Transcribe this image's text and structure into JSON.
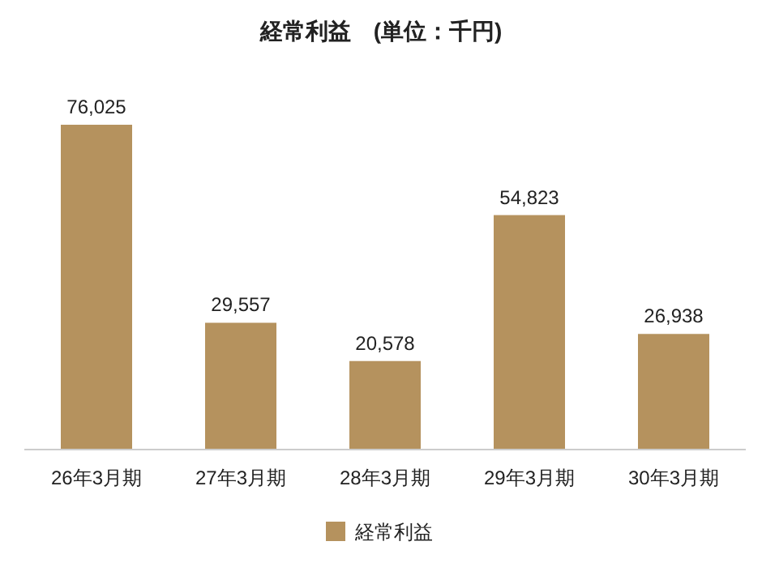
{
  "chart_data": {
    "type": "bar",
    "title": "経常利益　(単位：千円)",
    "categories": [
      "26年3月期",
      "27年3月期",
      "28年3月期",
      "29年3月期",
      "30年3月期"
    ],
    "series": [
      {
        "name": "経常利益",
        "color": "#b5925e",
        "values": [
          76025,
          29557,
          20578,
          54823,
          26938
        ],
        "value_labels": [
          "76,025",
          "29,557",
          "20,578",
          "54,823",
          "26,938"
        ]
      }
    ],
    "legend": "bottom"
  }
}
